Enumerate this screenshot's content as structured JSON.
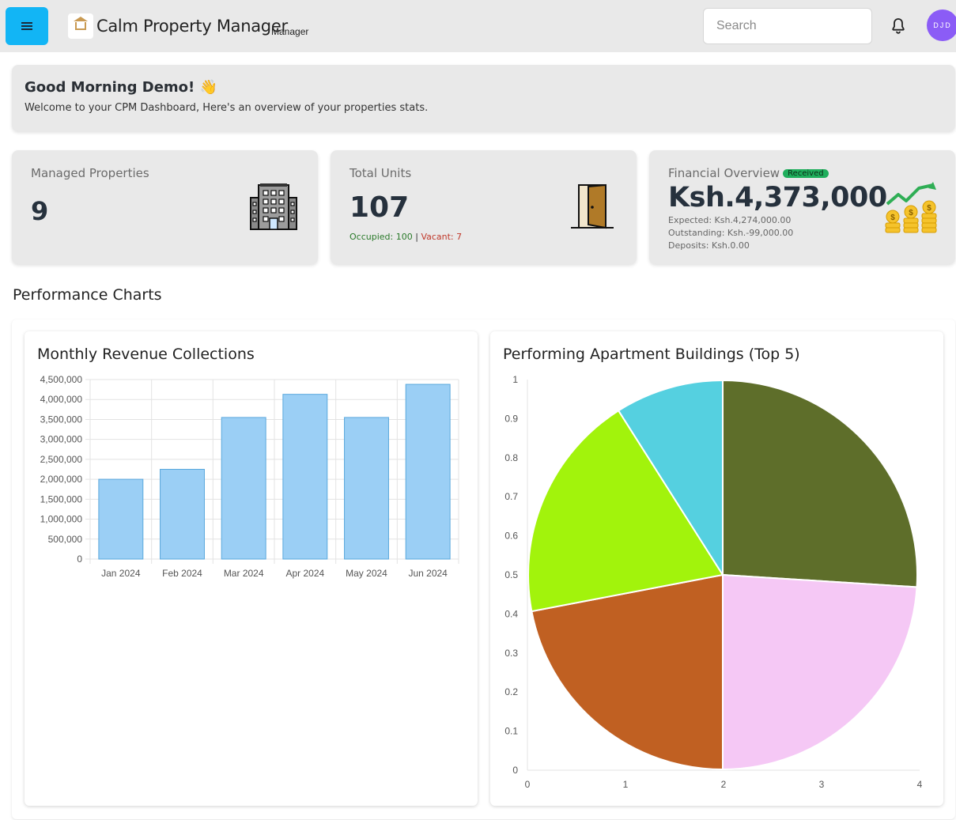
{
  "header": {
    "app_title": "Calm Property Manager",
    "role": "Manager",
    "search_placeholder": "Search",
    "avatar_initials": "DJD",
    "menu_icon": "hamburger-icon",
    "notification_icon": "bell-icon",
    "accent_color": "#12b5f5"
  },
  "welcome": {
    "greeting": "Good Morning Demo! 👋",
    "message": "Welcome to your CPM Dashboard, Here's an overview of your properties stats."
  },
  "stats": {
    "managed_properties": {
      "label": "Managed Properties",
      "value": "9",
      "icon": "building-icon"
    },
    "total_units": {
      "label": "Total Units",
      "value": "107",
      "occupied": "Occupied: 100",
      "separator": "|",
      "vacant": "Vacant: 7",
      "icon": "door-icon"
    },
    "financial": {
      "label": "Financial Overview",
      "badge": "Received",
      "value": "Ksh.4,373,000",
      "expected": "Expected: Ksh.4,274,000.00",
      "outstanding": "Outstanding: Ksh.-99,000.00",
      "deposits": "Deposits: Ksh.0.00",
      "icon": "coins-growth-icon"
    }
  },
  "section_title": "Performance Charts",
  "chart_data": [
    {
      "type": "bar",
      "title": "Monthly Revenue Collections",
      "categories": [
        "Jan 2024",
        "Feb 2024",
        "Mar 2024",
        "Apr 2024",
        "May 2024",
        "Jun 2024"
      ],
      "values": [
        2000000,
        2250000,
        3550000,
        4130000,
        3550000,
        4380000
      ],
      "ylim": [
        0,
        4500000
      ],
      "yticks": [
        "0",
        "500,000",
        "1,000,000",
        "1,500,000",
        "2,000,000",
        "2,500,000",
        "3,000,000",
        "3,500,000",
        "4,000,000",
        "4,500,000"
      ],
      "grid": true,
      "color": "#9bcff5"
    },
    {
      "type": "pie",
      "title": "Performing Apartment Buildings (Top 5)",
      "values": [
        26,
        24,
        22,
        19,
        9
      ],
      "colors": [
        "#5e6e2a",
        "#f5c8f5",
        "#c06022",
        "#a2f30c",
        "#55d0e0"
      ],
      "yticks": [
        "0",
        "0.1",
        "0.2",
        "0.3",
        "0.4",
        "0.5",
        "0.6",
        "0.7",
        "0.8",
        "0.9",
        "1"
      ],
      "xticks": [
        "0",
        "1",
        "2",
        "3",
        "4"
      ]
    }
  ]
}
